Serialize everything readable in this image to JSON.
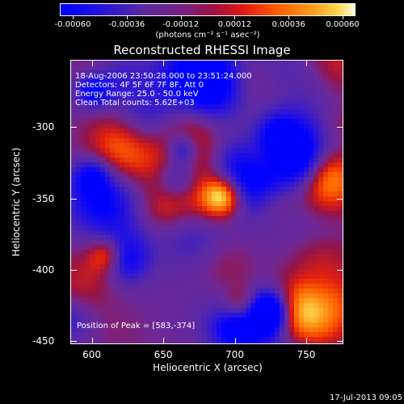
{
  "colorbar": {
    "tick_labels": [
      "-0.00060",
      "-0.00036",
      "-0.00012",
      "0.00012",
      "0.00036",
      "0.00060"
    ],
    "units": "(photons cm⁻² s⁻¹ asec⁻²)",
    "colors": [
      "#0000ff",
      "#3a1bbf",
      "#5a2a9a",
      "#7b1f7a",
      "#b0103a",
      "#e02010",
      "#ff5a00",
      "#ff9a10",
      "#ffd040",
      "#ffffe0"
    ]
  },
  "title": "Reconstructed RHESSI Image",
  "info": {
    "line1": "18-Aug-2006 23:50:28.000 to 23:51:24.000",
    "line2": "Detectors: 4F 5F 6F 7F 8F, Att 0",
    "line3": "Energy Range: 25.0 - 50.0 keV",
    "line4": "Clean     Total counts: 5.62E+03",
    "peak": "Position of Peak = [583,-374]"
  },
  "axes": {
    "xlabel": "Heliocentric X (arcsec)",
    "ylabel": "Heliocentric Y (arcsec)",
    "x_ticks": [
      "600",
      "650",
      "700",
      "750"
    ],
    "y_ticks": [
      "-300",
      "-350",
      "-400",
      "-450"
    ],
    "xlim": [
      585,
      776
    ],
    "ylim": [
      -452,
      -253
    ]
  },
  "timestamp": "17-Jul-2013 09:05"
}
